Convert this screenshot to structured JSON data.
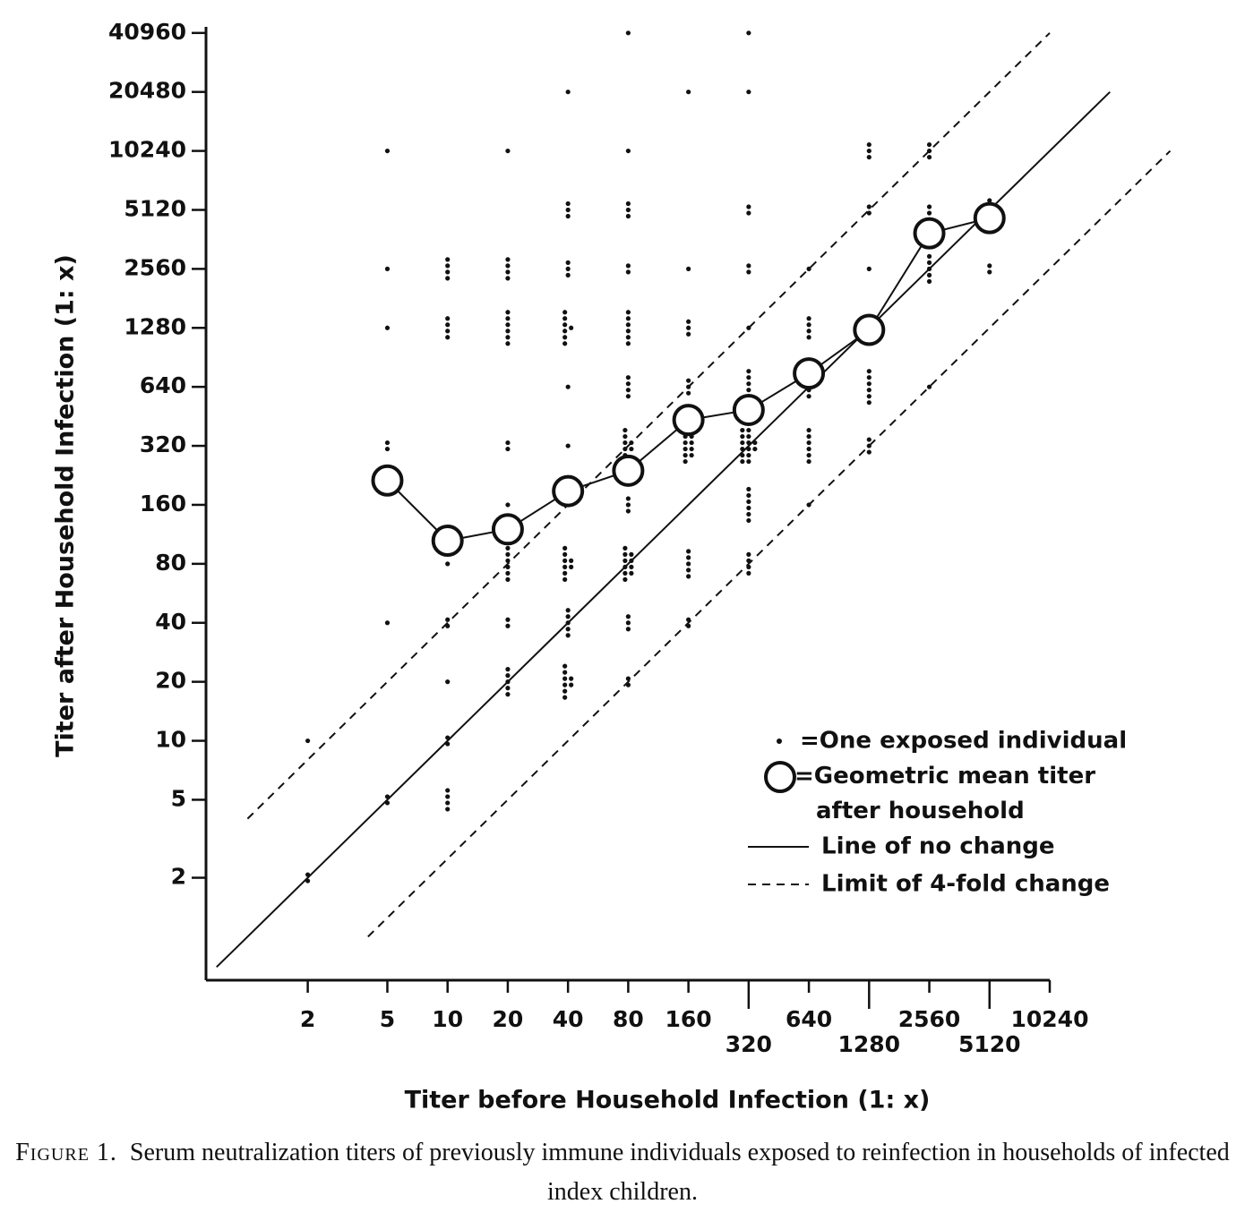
{
  "chart_data": {
    "type": "scatter",
    "xlabel": "Titer before Household Infection (1: x)",
    "ylabel": "Titer after Household Infection (1: x)",
    "xscale": "log",
    "yscale": "log",
    "xlim": [
      0.62,
      10240
    ],
    "ylim": [
      0.6,
      44000
    ],
    "xticks": [
      2,
      5,
      10,
      20,
      40,
      80,
      160,
      320,
      640,
      1280,
      2560,
      5120,
      10240
    ],
    "yticks": [
      2,
      5,
      10,
      20,
      40,
      80,
      160,
      320,
      640,
      1280,
      2560,
      5120,
      10240,
      20480,
      40960
    ],
    "legend": "lower right",
    "series": [
      {
        "name": "=One exposed individual",
        "kind": "dots",
        "color": "#111111",
        "x": [
          2,
          2,
          5,
          5,
          5,
          5,
          5,
          5,
          10,
          10,
          10,
          10,
          10,
          10,
          10,
          20,
          20,
          20,
          20,
          20,
          20,
          20,
          20,
          40,
          40,
          40,
          40,
          40,
          40,
          40,
          40,
          40,
          80,
          80,
          80,
          80,
          80,
          80,
          80,
          80,
          80,
          80,
          80,
          160,
          160,
          160,
          160,
          160,
          160,
          160,
          320,
          320,
          320,
          320,
          320,
          320,
          320,
          320,
          320,
          640,
          640,
          640,
          640,
          640,
          1280,
          1280,
          1280,
          1280,
          1280,
          1280,
          2560,
          2560,
          2560,
          2560,
          5120,
          5120
        ],
        "y": [
          10,
          2,
          10240,
          2560,
          1280,
          320,
          40,
          5,
          2560,
          1280,
          80,
          40,
          20,
          10,
          5,
          10240,
          2560,
          1280,
          320,
          160,
          80,
          40,
          20,
          20480,
          5120,
          2560,
          1280,
          640,
          320,
          80,
          40,
          20,
          40960,
          10240,
          5120,
          2560,
          1280,
          640,
          320,
          160,
          80,
          40,
          20,
          20480,
          2560,
          1280,
          640,
          320,
          80,
          40,
          40960,
          20480,
          5120,
          2560,
          1280,
          640,
          320,
          160,
          80,
          2560,
          1280,
          640,
          320,
          160,
          10240,
          5120,
          2560,
          1280,
          640,
          320,
          10240,
          5120,
          2560,
          640,
          5120,
          2560
        ],
        "count": [
          1,
          2,
          1,
          1,
          1,
          2,
          1,
          2,
          4,
          4,
          1,
          2,
          1,
          2,
          4,
          1,
          4,
          6,
          2,
          1,
          6,
          2,
          5,
          1,
          3,
          3,
          7,
          1,
          1,
          8,
          5,
          8,
          1,
          1,
          3,
          2,
          6,
          4,
          8,
          3,
          10,
          3,
          2,
          1,
          1,
          3,
          3,
          10,
          5,
          2,
          1,
          1,
          2,
          2,
          1,
          6,
          14,
          6,
          4,
          1,
          4,
          4,
          6,
          1,
          3,
          2,
          1,
          4,
          6,
          3,
          3,
          2,
          5,
          1,
          4,
          2
        ]
      },
      {
        "name": "=Geometric mean titer after household infection",
        "kind": "means",
        "color": "#111111",
        "x": [
          5,
          10,
          20,
          40,
          80,
          160,
          320,
          640,
          1280,
          2560,
          5120
        ],
        "y": [
          213,
          105,
          120,
          188,
          239,
          434,
          488,
          750,
          1250,
          3890,
          4650
        ]
      },
      {
        "name": "Line of no change",
        "kind": "line",
        "style": "solid",
        "color": "#111111",
        "x": [
          0.7,
          20480
        ],
        "y": [
          0.7,
          20480
        ]
      },
      {
        "name": "Limit of 4-fold change",
        "kind": "line",
        "style": "dashed",
        "color": "#111111",
        "x": [
          1,
          10240,
          null,
          4,
          40960
        ],
        "y": [
          4,
          40960,
          null,
          1,
          10240
        ]
      }
    ],
    "caption_label": "Figure 1.",
    "caption": "Serum neutralization titers of previously immune individuals exposed to reinfection in households of infected index children."
  }
}
